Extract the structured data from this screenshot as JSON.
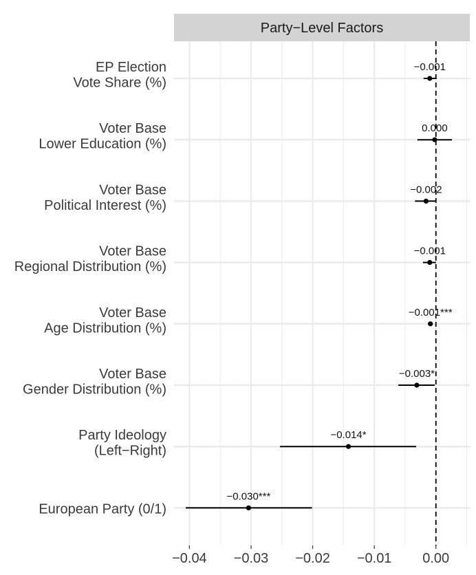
{
  "chart_data": {
    "type": "scatter",
    "subtype": "coefficient-plot",
    "title": "",
    "panel_title": "Party−Level Factors",
    "xlabel": "",
    "ylabel": "",
    "xlim": [
      -0.0425,
      0.0055
    ],
    "xticks": [
      -0.04,
      -0.03,
      -0.02,
      -0.01,
      0.0
    ],
    "xtick_labels": [
      "−0.04",
      "−0.03",
      "−0.02",
      "−0.01",
      "0.00"
    ],
    "reference_line": 0.0,
    "grid": true,
    "colors": {
      "point": "#000000",
      "strip": "#d3d3d3",
      "grid": "#ebebeb"
    },
    "rows": [
      {
        "label_lines": [
          "EP Election",
          "Vote Share (%)"
        ],
        "estimate": -0.001,
        "ci_low": -0.002,
        "ci_high": 0.0001,
        "value_label": "−0.001"
      },
      {
        "label_lines": [
          "Voter Base",
          "Lower Education (%)"
        ],
        "estimate": -0.0002,
        "ci_low": -0.003,
        "ci_high": 0.0026,
        "value_label": "0.000"
      },
      {
        "label_lines": [
          "Voter Base",
          "Political Interest (%)"
        ],
        "estimate": -0.0016,
        "ci_low": -0.0034,
        "ci_high": 0.0,
        "value_label": "−0.002"
      },
      {
        "label_lines": [
          "Voter Base",
          "Regional Distribution (%)"
        ],
        "estimate": -0.001,
        "ci_low": -0.0021,
        "ci_high": 0.0,
        "value_label": "−0.001"
      },
      {
        "label_lines": [
          "Voter Base",
          "Age Distribution (%)"
        ],
        "estimate": -0.0009,
        "ci_low": -0.0013,
        "ci_high": -0.0005,
        "value_label": "−0.001***"
      },
      {
        "label_lines": [
          "Voter Base",
          "Gender Distribution (%)"
        ],
        "estimate": -0.0031,
        "ci_low": -0.0061,
        "ci_high": -0.0002,
        "value_label": "−0.003*"
      },
      {
        "label_lines": [
          "Party Ideology",
          "(Left−Right)"
        ],
        "estimate": -0.0142,
        "ci_low": -0.0253,
        "ci_high": -0.0032,
        "value_label": "−0.014*"
      },
      {
        "label_lines": [
          "European Party (0/1)"
        ],
        "estimate": -0.0304,
        "ci_low": -0.0406,
        "ci_high": -0.0201,
        "value_label": "−0.030***"
      }
    ]
  }
}
